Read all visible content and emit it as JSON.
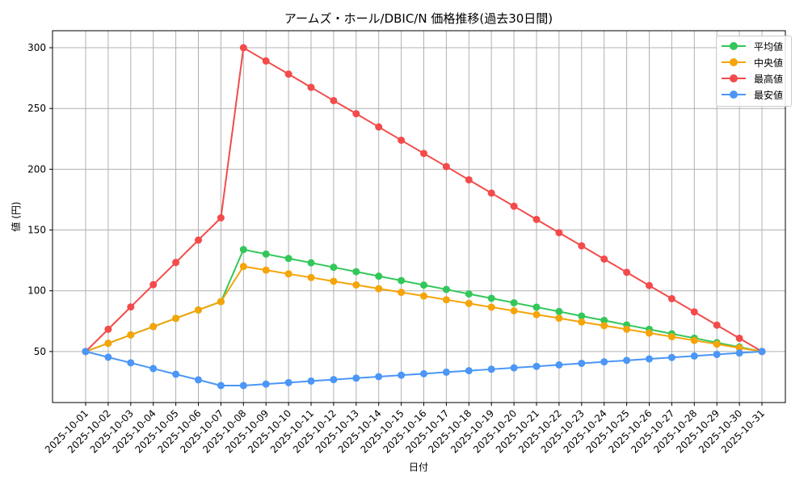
{
  "chart_data": {
    "type": "line",
    "title": "アームズ・ホール/DBIC/N 価格推移(過去30日間)",
    "xlabel": "日付",
    "ylabel": "値 (円)",
    "ylim": [
      8,
      314
    ],
    "yticks": [
      50,
      100,
      150,
      200,
      250,
      300
    ],
    "grid": true,
    "legend_position": "upper right",
    "x": [
      "2025-10-01",
      "2025-10-02",
      "2025-10-03",
      "2025-10-04",
      "2025-10-05",
      "2025-10-06",
      "2025-10-07",
      "2025-10-08",
      "2025-10-09",
      "2025-10-10",
      "2025-10-11",
      "2025-10-12",
      "2025-10-13",
      "2025-10-14",
      "2025-10-15",
      "2025-10-16",
      "2025-10-17",
      "2025-10-18",
      "2025-10-19",
      "2025-10-20",
      "2025-10-21",
      "2025-10-22",
      "2025-10-23",
      "2025-10-24",
      "2025-10-25",
      "2025-10-26",
      "2025-10-27",
      "2025-10-28",
      "2025-10-29",
      "2025-10-30",
      "2025-10-31"
    ],
    "series": [
      {
        "name": "平均値",
        "color": "#33c75a",
        "values": [
          50,
          56.8,
          63.7,
          70.5,
          77.3,
          84.2,
          91,
          133.9,
          130.2,
          126.6,
          123.0,
          119.3,
          115.7,
          112.0,
          108.4,
          104.7,
          101.1,
          97.4,
          93.8,
          90.1,
          86.5,
          82.9,
          79.2,
          75.6,
          71.9,
          68.3,
          64.6,
          61.0,
          57.3,
          53.7,
          50
        ]
      },
      {
        "name": "中央値",
        "color": "#f5a40a",
        "values": [
          50,
          56.8,
          63.7,
          70.5,
          77.3,
          84.2,
          91,
          120,
          117.0,
          113.9,
          110.9,
          107.8,
          104.8,
          101.7,
          98.7,
          95.7,
          92.6,
          89.6,
          86.5,
          83.5,
          80.4,
          77.4,
          74.3,
          71.3,
          68.3,
          65.2,
          62.2,
          59.1,
          56.1,
          53.0,
          50
        ]
      },
      {
        "name": "最高値",
        "color": "#f34b4b",
        "values": [
          50,
          68.3,
          86.7,
          105,
          123.3,
          141.7,
          160,
          300,
          289.1,
          278.3,
          267.4,
          256.5,
          245.7,
          234.8,
          223.9,
          213.0,
          202.2,
          191.3,
          180.4,
          169.6,
          158.7,
          147.8,
          137.0,
          126.1,
          115.2,
          104.3,
          93.5,
          82.6,
          71.7,
          60.9,
          50
        ]
      },
      {
        "name": "最安値",
        "color": "#4b96f7",
        "values": [
          50,
          45.3,
          40.7,
          36,
          31.3,
          26.7,
          22,
          22,
          23.2,
          24.4,
          25.7,
          26.9,
          28.1,
          29.3,
          30.5,
          31.7,
          33.0,
          34.2,
          35.4,
          36.6,
          37.8,
          39.0,
          40.3,
          41.5,
          42.7,
          43.9,
          45.1,
          46.3,
          47.6,
          48.8,
          50
        ]
      }
    ]
  }
}
